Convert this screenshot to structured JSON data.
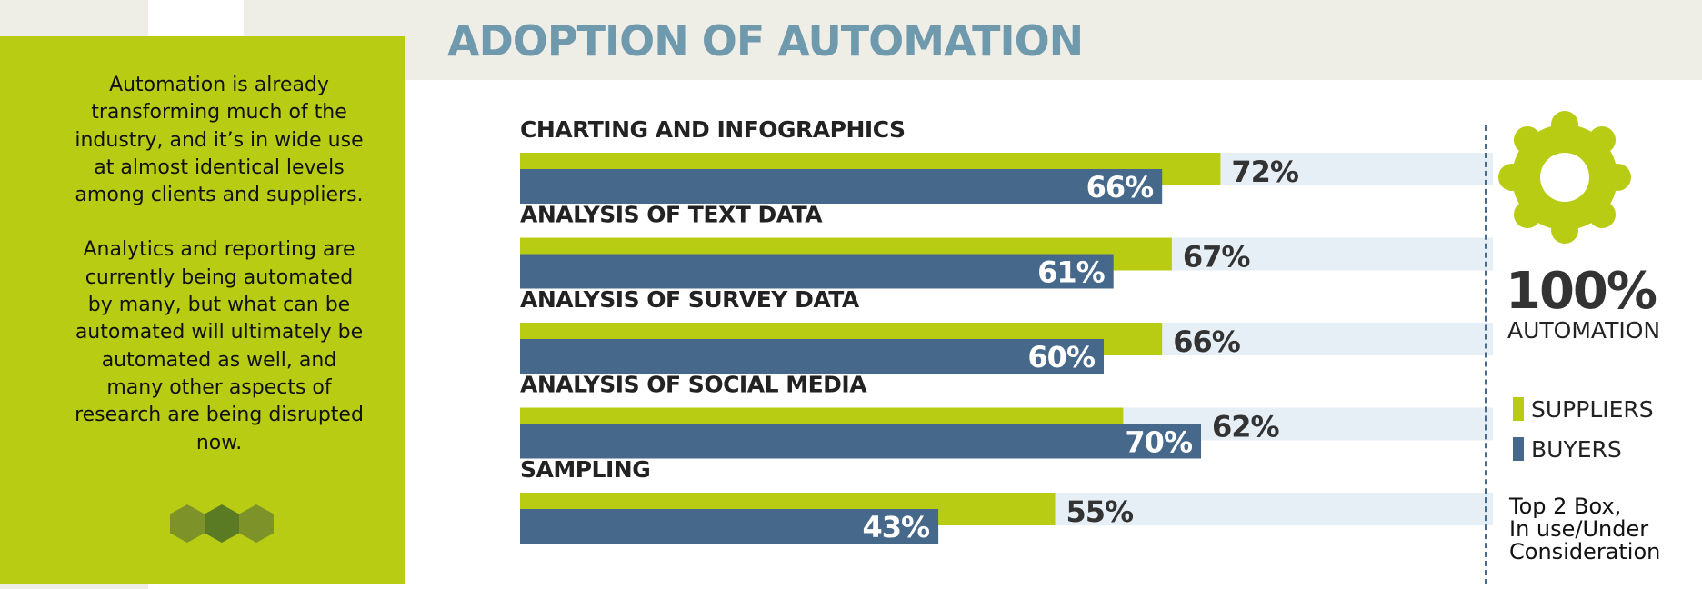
{
  "title": "ADOPTION OF AUTOMATION",
  "sidebar": {
    "paragraphs": [
      "Automation is already transforming much of the industry, and it’s in wide use at almost identical levels among clients and suppliers.",
      "Analytics and reporting are currently being automated by many, but what can be automated will ultimately be automated as well, and many other aspects of research are being disrupted now."
    ]
  },
  "callout": {
    "value": "100%",
    "label": "AUTOMATION"
  },
  "note": {
    "lines": [
      "Top 2 Box,",
      "In use/Under",
      "Consideration"
    ]
  },
  "colors": {
    "suppliers": "#b8cc14",
    "buyers": "#46688a",
    "track": "#e6eef6",
    "panel": "#b8cc14",
    "band": "#efeee6",
    "title": "#6f9aae"
  },
  "chart_data": {
    "type": "bar",
    "orientation": "horizontal",
    "title": "ADOPTION OF AUTOMATION",
    "categories": [
      "CHARTING AND INFOGRAPHICS",
      "ANALYSIS OF TEXT DATA",
      "ANALYSIS OF SURVEY DATA",
      "ANALYSIS OF SOCIAL MEDIA",
      "SAMPLING"
    ],
    "series": [
      {
        "name": "SUPPLIERS",
        "values": [
          72,
          67,
          66,
          62,
          55
        ]
      },
      {
        "name": "BUYERS",
        "values": [
          66,
          61,
          60,
          70,
          43
        ]
      }
    ],
    "data_labels": {
      "SUPPLIERS": [
        "72%",
        "67%",
        "66%",
        "62%",
        "55%"
      ],
      "BUYERS": [
        "66%",
        "61%",
        "60%",
        "70%",
        "43%"
      ]
    },
    "xlim": [
      0,
      100
    ],
    "legend": {
      "position": "right",
      "entries": [
        "SUPPLIERS",
        "BUYERS"
      ]
    },
    "grid": false,
    "value_suffix": "%"
  }
}
